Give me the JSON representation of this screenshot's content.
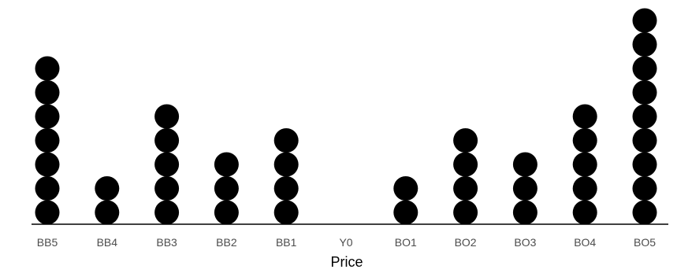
{
  "chart_data": {
    "type": "dotplot",
    "categories": [
      "BB5",
      "BB4",
      "BB3",
      "BB2",
      "BB1",
      "Y0",
      "BO1",
      "BO2",
      "BO3",
      "BO4",
      "BO5"
    ],
    "values": [
      7,
      2,
      5,
      3,
      4,
      0,
      2,
      4,
      3,
      5,
      9
    ],
    "xlabel": "Price",
    "ylabel": "",
    "grid": false,
    "legend": "none",
    "colors": {
      "dot": "#000000",
      "axis": "#000000",
      "tick_label": "#4d4d4d",
      "title": "#000000"
    }
  }
}
